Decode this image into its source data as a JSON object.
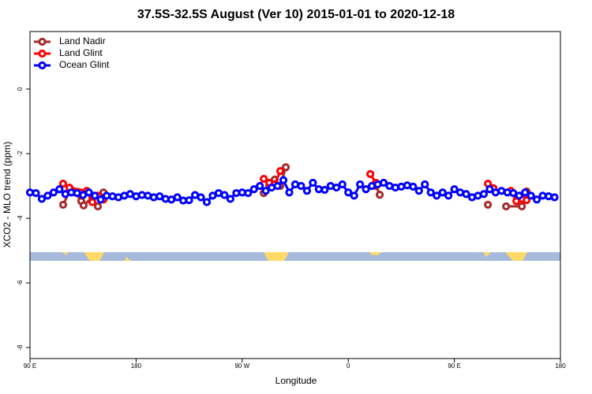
{
  "chart_data": {
    "type": "line",
    "title": "37.5S-32.5S August (Ver 10)   2015-01-01 to 2020-12-18",
    "xlabel": "Longitude",
    "ylabel": "XCO2 - MLO trend (ppm)",
    "xlim": [
      90,
      540
    ],
    "ylim": [
      -8.34,
      1.78
    ],
    "xticks": [
      {
        "value": 90,
        "label": "90 E"
      },
      {
        "value": 180,
        "label": "180"
      },
      {
        "value": 270,
        "label": "90 W"
      },
      {
        "value": 360,
        "label": "0"
      },
      {
        "value": 450,
        "label": "90 E"
      },
      {
        "value": 540,
        "label": "180"
      }
    ],
    "yticks": [
      0,
      -2,
      -4,
      -6,
      -8
    ],
    "legend": "top-left",
    "series": [
      {
        "name": "Land Nadir",
        "color": "#a52a2a",
        "x": [
          118.1,
          123.5,
          128.2,
          133.5,
          135.5,
          142.9,
          147.6,
          152.3,
          null,
          288.3,
          293,
          297.6,
          302.3,
          307,
          null,
          383.4,
          386.7,
          null,
          478.5,
          null,
          493.9,
          507.3,
          511.3
        ],
        "values": [
          -3.58,
          -3.17,
          -3.2,
          -3.47,
          -3.6,
          -3.35,
          -3.63,
          -3.2,
          null,
          -3.22,
          -2.98,
          -2.8,
          -3.0,
          -2.42,
          null,
          -3.0,
          -3.27,
          null,
          -3.58,
          null,
          -3.63,
          -3.63,
          -3.17
        ]
      },
      {
        "name": "Land Glint",
        "color": "#ff0000",
        "x": [
          118.1,
          123.5,
          138.2,
          142.9,
          147.6,
          152.3,
          null,
          288.3,
          293,
          297.6,
          302.3,
          null,
          378.7,
          383.4,
          null,
          478.5,
          483.2,
          null,
          497.9,
          502.6,
          507.3,
          511.3
        ],
        "values": [
          -2.93,
          -3.05,
          -3.15,
          -3.5,
          -3.3,
          -3.42,
          null,
          -2.78,
          -2.9,
          -2.95,
          -2.54,
          null,
          -2.63,
          -2.9,
          null,
          -2.93,
          -3.07,
          null,
          -3.15,
          -3.47,
          -3.4,
          -3.44
        ]
      },
      {
        "name": "Ocean Glint",
        "color": "#0000ff",
        "x": [
          90,
          95,
          100,
          105,
          110,
          115,
          120,
          125,
          130,
          135,
          140,
          145,
          150,
          155,
          160,
          165,
          170,
          175,
          180,
          185,
          190,
          195,
          200,
          205,
          210,
          215,
          220,
          225,
          230,
          235,
          240,
          245,
          250,
          255,
          260,
          265,
          270,
          275,
          280,
          285,
          290,
          295,
          300,
          305,
          310,
          315,
          320,
          325,
          330,
          335,
          340,
          345,
          350,
          355,
          360,
          365,
          370,
          375,
          380,
          385,
          390,
          395,
          400,
          405,
          410,
          415,
          420,
          425,
          430,
          435,
          440,
          445,
          450,
          455,
          460,
          465,
          470,
          475,
          480,
          485,
          490,
          495,
          500,
          505,
          510,
          515,
          520,
          525,
          530,
          535
        ],
        "values": [
          -3.2,
          -3.22,
          -3.4,
          -3.3,
          -3.2,
          -3.1,
          -3.25,
          -3.2,
          -3.22,
          -3.28,
          -3.2,
          -3.3,
          -3.42,
          -3.3,
          -3.32,
          -3.35,
          -3.3,
          -3.25,
          -3.32,
          -3.28,
          -3.3,
          -3.35,
          -3.32,
          -3.4,
          -3.42,
          -3.35,
          -3.45,
          -3.44,
          -3.28,
          -3.35,
          -3.5,
          -3.3,
          -3.22,
          -3.28,
          -3.4,
          -3.22,
          -3.2,
          -3.22,
          -3.1,
          -3.0,
          -3.15,
          -3.05,
          -3.0,
          -2.82,
          -3.2,
          -2.95,
          -3.0,
          -3.15,
          -2.9,
          -3.1,
          -3.12,
          -3.0,
          -3.05,
          -2.95,
          -3.2,
          -3.3,
          -2.95,
          -3.1,
          -3.0,
          -2.95,
          -2.9,
          -3.0,
          -3.05,
          -3.02,
          -2.98,
          -3.02,
          -3.15,
          -2.95,
          -3.2,
          -3.3,
          -3.2,
          -3.3,
          -3.1,
          -3.2,
          -3.25,
          -3.35,
          -3.3,
          -3.25,
          -3.1,
          -3.2,
          -3.15,
          -3.2,
          -3.22,
          -3.3,
          -3.2,
          -3.3,
          -3.42,
          -3.3,
          -3.32,
          -3.35
        ]
      }
    ]
  }
}
